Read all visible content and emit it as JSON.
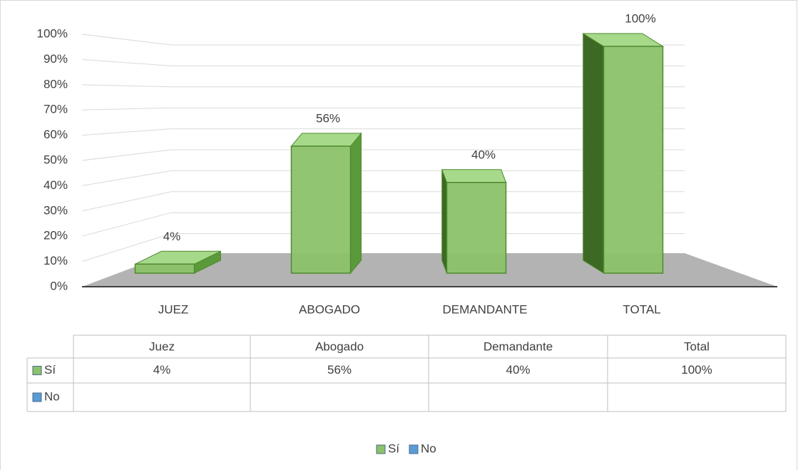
{
  "chart_data": {
    "type": "bar",
    "categories": [
      "JUEZ",
      "ABOGADO",
      "DEMANDANTE",
      "TOTAL"
    ],
    "table_header": [
      "Juez",
      "Abogado",
      "Demandante",
      "Total"
    ],
    "series": [
      {
        "name": "Sí",
        "color": "#8cc26a",
        "values": [
          4,
          56,
          40,
          100
        ],
        "value_labels": [
          "4%",
          "56%",
          "40%",
          "100%"
        ]
      },
      {
        "name": "No",
        "color": "#5b9bd5",
        "values": [
          null,
          null,
          null,
          null
        ]
      }
    ],
    "ylim": [
      0,
      100
    ],
    "yticks": [
      {
        "value": 0,
        "label": "0%"
      },
      {
        "value": 10,
        "label": "10%"
      },
      {
        "value": 20,
        "label": "20%"
      },
      {
        "value": 30,
        "label": "30%"
      },
      {
        "value": 40,
        "label": "40%"
      },
      {
        "value": 50,
        "label": "50%"
      },
      {
        "value": 60,
        "label": "60%"
      },
      {
        "value": 70,
        "label": "70%"
      },
      {
        "value": 80,
        "label": "80%"
      },
      {
        "value": 90,
        "label": "90%"
      },
      {
        "value": 100,
        "label": "100%"
      }
    ],
    "grid": true,
    "legend": "bottom"
  }
}
